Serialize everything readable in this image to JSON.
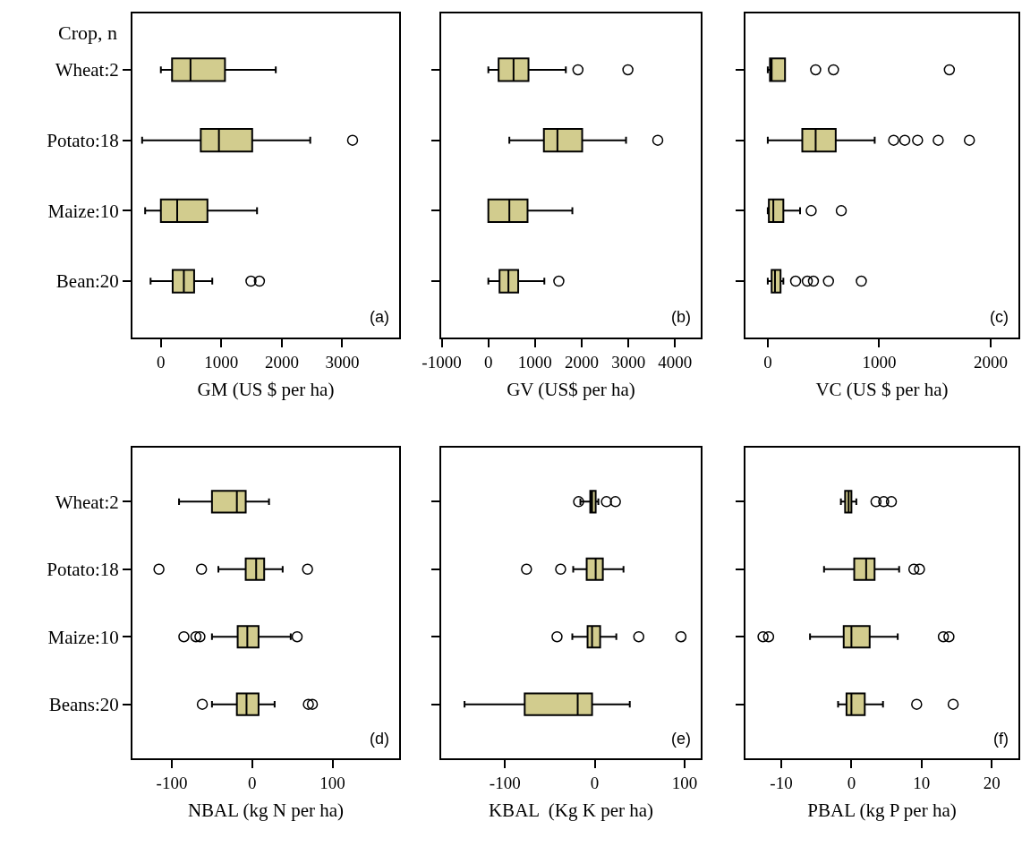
{
  "chart_data": [
    {
      "type": "box",
      "orientation": "horizontal",
      "ylabel": "Crop, n",
      "xlabel": "GM (US $ per ha)",
      "annotations": [
        "(a)"
      ],
      "color": "#d2cc8e",
      "categories": [
        "Wheat:2",
        "Potato:18",
        "Maize:10",
        "Bean:20"
      ],
      "xlim": [
        -470,
        3940
      ],
      "xticks": [
        0,
        1000,
        2000,
        3000
      ],
      "boxes": [
        {
          "low": 0,
          "q1": 185,
          "median": 490,
          "q3": 1060,
          "high": 1900
        },
        {
          "low": -310,
          "q1": 660,
          "median": 960,
          "q3": 1510,
          "high": 2470,
          "outliers": [
            3170
          ]
        },
        {
          "low": -260,
          "q1": 0,
          "median": 270,
          "q3": 770,
          "high": 1590
        },
        {
          "low": -170,
          "q1": 195,
          "median": 380,
          "q3": 550,
          "high": 850,
          "outliers": [
            1490,
            1630
          ]
        }
      ]
    },
    {
      "type": "box",
      "orientation": "horizontal",
      "tick_labels": "x",
      "xlabel": "GV (US$ per ha)",
      "annotations": [
        "(b)"
      ],
      "color": "#d2cc8e",
      "categories": [
        "Wheat:2",
        "Potato:18",
        "Maize:10",
        "Bean:20"
      ],
      "xlim": [
        -1010,
        4550
      ],
      "xticks": [
        -1000,
        0,
        1000,
        2000,
        3000,
        4000
      ],
      "boxes": [
        {
          "low": 0,
          "q1": 220,
          "median": 540,
          "q3": 860,
          "high": 1660,
          "outliers": [
            1920,
            2990
          ]
        },
        {
          "low": 450,
          "q1": 1190,
          "median": 1480,
          "q3": 2010,
          "high": 2950,
          "outliers": [
            3630
          ]
        },
        {
          "low": 0,
          "q1": 0,
          "median": 450,
          "q3": 840,
          "high": 1800
        },
        {
          "low": 0,
          "q1": 240,
          "median": 430,
          "q3": 640,
          "high": 1200,
          "outliers": [
            1510
          ]
        }
      ]
    },
    {
      "type": "box",
      "orientation": "horizontal",
      "tick_labels": "x",
      "xlabel": "VC (US $ per ha)",
      "annotations": [
        "(c)"
      ],
      "color": "#d2cc8e",
      "categories": [
        "Wheat:2",
        "Potato:18",
        "Maize:10",
        "Bean:20"
      ],
      "xlim": [
        -200,
        2250
      ],
      "xticks": [
        0,
        1000,
        2000
      ],
      "boxes": [
        {
          "low": 0,
          "q1": 20,
          "median": 35,
          "q3": 155,
          "high": 155,
          "outliers": [
            430,
            590,
            1630
          ]
        },
        {
          "low": 0,
          "q1": 310,
          "median": 430,
          "q3": 610,
          "high": 960,
          "outliers": [
            1130,
            1230,
            1345,
            1530,
            1810
          ]
        },
        {
          "low": 0,
          "q1": 10,
          "median": 50,
          "q3": 140,
          "high": 290,
          "outliers": [
            390,
            660
          ]
        },
        {
          "low": 0,
          "q1": 35,
          "median": 65,
          "q3": 115,
          "high": 140,
          "outliers": [
            250,
            355,
            410,
            545,
            840
          ]
        }
      ]
    },
    {
      "type": "box",
      "orientation": "horizontal",
      "xlabel": "NBAL (kg N per ha)",
      "annotations": [
        "(d)"
      ],
      "color": "#d2cc8e",
      "categories": [
        "Wheat:2",
        "Potato:18",
        "Maize:10",
        "Beans:20"
      ],
      "xlim": [
        -149,
        183
      ],
      "xticks": [
        -100,
        0,
        100
      ],
      "boxes": [
        {
          "low": -91,
          "q1": -50,
          "median": -19,
          "q3": -8,
          "high": 21
        },
        {
          "low": -42,
          "q1": -8,
          "median": 5,
          "q3": 15,
          "high": 38,
          "outliers": [
            -116,
            -63,
            69
          ]
        },
        {
          "low": -50,
          "q1": -18,
          "median": -6,
          "q3": 8,
          "high": 48,
          "outliers": [
            -85,
            -70,
            -65,
            56
          ]
        },
        {
          "low": -50,
          "q1": -19,
          "median": -7,
          "q3": 8,
          "high": 28,
          "outliers": [
            -62,
            70,
            75
          ]
        }
      ]
    },
    {
      "type": "box",
      "orientation": "horizontal",
      "tick_labels": "x",
      "xlabel": "KBAL  (Kg K per ha)",
      "annotations": [
        "(e)"
      ],
      "color": "#d2cc8e",
      "categories": [
        "Wheat:2",
        "Potato:18",
        "Maize:10",
        "Beans:20"
      ],
      "xlim": [
        -171,
        118
      ],
      "xticks": [
        -100,
        0,
        100
      ],
      "boxes": [
        {
          "low": -16,
          "q1": -5,
          "median": -3,
          "q3": 1,
          "high": 4,
          "outliers": [
            -18,
            13,
            23
          ]
        },
        {
          "low": -24,
          "q1": -9,
          "median": 1,
          "q3": 9,
          "high": 32,
          "outliers": [
            -76,
            -38
          ]
        },
        {
          "low": -25,
          "q1": -8,
          "median": -3,
          "q3": 6,
          "high": 24,
          "outliers": [
            -42,
            49,
            96
          ]
        },
        {
          "low": -145,
          "q1": -78,
          "median": -19,
          "q3": -3,
          "high": 39
        }
      ]
    },
    {
      "type": "box",
      "orientation": "horizontal",
      "tick_labels": "x",
      "xlabel": "PBAL (kg P per ha)",
      "annotations": [
        "(f)"
      ],
      "color": "#d2cc8e",
      "categories": [
        "Wheat:2",
        "Potato:18",
        "Maize:10",
        "Beans:20"
      ],
      "xlim": [
        -15.1,
        23.8
      ],
      "xticks": [
        -10,
        0,
        10,
        20
      ],
      "boxes": [
        {
          "low": -1.5,
          "q1": -0.9,
          "median": -0.4,
          "q3": 0,
          "high": 0.7,
          "outliers": [
            3.5,
            4.6,
            5.7
          ]
        },
        {
          "low": -3.9,
          "q1": 0.4,
          "median": 2.1,
          "q3": 3.3,
          "high": 6.8,
          "outliers": [
            8.9,
            9.7
          ]
        },
        {
          "low": -5.9,
          "q1": -1.1,
          "median": 0,
          "q3": 2.6,
          "high": 6.6,
          "outliers": [
            -12.6,
            -11.8,
            13.1,
            13.9
          ]
        },
        {
          "low": -1.9,
          "q1": -0.7,
          "median": 0,
          "q3": 1.9,
          "high": 4.5,
          "outliers": [
            9.3,
            14.5
          ]
        }
      ]
    }
  ]
}
